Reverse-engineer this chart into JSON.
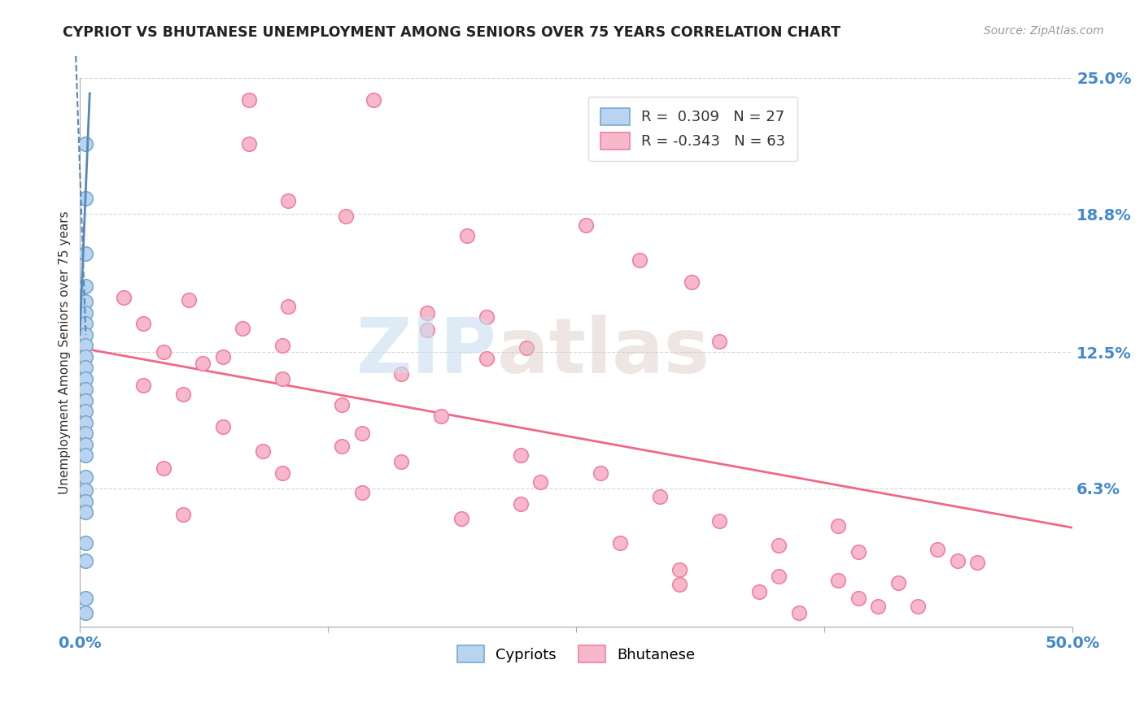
{
  "title": "CYPRIOT VS BHUTANESE UNEMPLOYMENT AMONG SENIORS OVER 75 YEARS CORRELATION CHART",
  "source": "Source: ZipAtlas.com",
  "ylabel": "Unemployment Among Seniors over 75 years",
  "xlim": [
    0.0,
    0.5
  ],
  "ylim": [
    0.0,
    0.25
  ],
  "xtick_positions": [
    0.0,
    0.125,
    0.25,
    0.375,
    0.5
  ],
  "xticklabels": [
    "0.0%",
    "",
    "",
    "",
    "50.0%"
  ],
  "ytick_positions": [
    0.0,
    0.063,
    0.125,
    0.188,
    0.25
  ],
  "ytick_labels": [
    "",
    "6.3%",
    "12.5%",
    "18.8%",
    "25.0%"
  ],
  "legend_cypriot_r": "0.309",
  "legend_cypriot_n": "27",
  "legend_bhutanese_r": "-0.343",
  "legend_bhutanese_n": "63",
  "cypriot_color": "#b8d4f0",
  "bhutanese_color": "#f8b8cc",
  "cypriot_edge_color": "#7aaad0",
  "bhutanese_edge_color": "#f080a0",
  "cypriot_line_color": "#5588bb",
  "bhutanese_line_color": "#f06888",
  "watermark_zip": "ZIP",
  "watermark_atlas": "atlas",
  "cypriot_trendline": [
    [
      0.0,
      0.133
    ],
    [
      0.005,
      0.243
    ]
  ],
  "bhutanese_trendline": [
    [
      0.0,
      0.127
    ],
    [
      0.5,
      0.045
    ]
  ],
  "cypriot_points": [
    [
      0.003,
      0.22
    ],
    [
      0.003,
      0.195
    ],
    [
      0.003,
      0.17
    ],
    [
      0.003,
      0.155
    ],
    [
      0.003,
      0.148
    ],
    [
      0.003,
      0.143
    ],
    [
      0.003,
      0.138
    ],
    [
      0.003,
      0.133
    ],
    [
      0.003,
      0.128
    ],
    [
      0.003,
      0.123
    ],
    [
      0.003,
      0.118
    ],
    [
      0.003,
      0.113
    ],
    [
      0.003,
      0.108
    ],
    [
      0.003,
      0.103
    ],
    [
      0.003,
      0.098
    ],
    [
      0.003,
      0.093
    ],
    [
      0.003,
      0.088
    ],
    [
      0.003,
      0.083
    ],
    [
      0.003,
      0.078
    ],
    [
      0.003,
      0.068
    ],
    [
      0.003,
      0.062
    ],
    [
      0.003,
      0.057
    ],
    [
      0.003,
      0.052
    ],
    [
      0.003,
      0.038
    ],
    [
      0.003,
      0.03
    ],
    [
      0.003,
      0.013
    ],
    [
      0.003,
      0.006
    ]
  ],
  "bhutanese_points": [
    [
      0.085,
      0.24
    ],
    [
      0.148,
      0.24
    ],
    [
      0.085,
      0.22
    ],
    [
      0.105,
      0.194
    ],
    [
      0.134,
      0.187
    ],
    [
      0.255,
      0.183
    ],
    [
      0.195,
      0.178
    ],
    [
      0.282,
      0.167
    ],
    [
      0.308,
      0.157
    ],
    [
      0.022,
      0.15
    ],
    [
      0.055,
      0.149
    ],
    [
      0.105,
      0.146
    ],
    [
      0.175,
      0.143
    ],
    [
      0.205,
      0.141
    ],
    [
      0.032,
      0.138
    ],
    [
      0.082,
      0.136
    ],
    [
      0.175,
      0.135
    ],
    [
      0.322,
      0.13
    ],
    [
      0.102,
      0.128
    ],
    [
      0.225,
      0.127
    ],
    [
      0.042,
      0.125
    ],
    [
      0.072,
      0.123
    ],
    [
      0.205,
      0.122
    ],
    [
      0.062,
      0.12
    ],
    [
      0.162,
      0.115
    ],
    [
      0.102,
      0.113
    ],
    [
      0.032,
      0.11
    ],
    [
      0.052,
      0.106
    ],
    [
      0.132,
      0.101
    ],
    [
      0.182,
      0.096
    ],
    [
      0.072,
      0.091
    ],
    [
      0.142,
      0.088
    ],
    [
      0.132,
      0.082
    ],
    [
      0.092,
      0.08
    ],
    [
      0.222,
      0.078
    ],
    [
      0.162,
      0.075
    ],
    [
      0.042,
      0.072
    ],
    [
      0.102,
      0.07
    ],
    [
      0.262,
      0.07
    ],
    [
      0.232,
      0.066
    ],
    [
      0.142,
      0.061
    ],
    [
      0.292,
      0.059
    ],
    [
      0.222,
      0.056
    ],
    [
      0.052,
      0.051
    ],
    [
      0.192,
      0.049
    ],
    [
      0.322,
      0.048
    ],
    [
      0.382,
      0.046
    ],
    [
      0.272,
      0.038
    ],
    [
      0.352,
      0.037
    ],
    [
      0.432,
      0.035
    ],
    [
      0.392,
      0.034
    ],
    [
      0.442,
      0.03
    ],
    [
      0.302,
      0.026
    ],
    [
      0.352,
      0.023
    ],
    [
      0.382,
      0.021
    ],
    [
      0.412,
      0.02
    ],
    [
      0.302,
      0.019
    ],
    [
      0.342,
      0.016
    ],
    [
      0.392,
      0.013
    ],
    [
      0.402,
      0.009
    ],
    [
      0.452,
      0.029
    ],
    [
      0.422,
      0.009
    ],
    [
      0.362,
      0.006
    ]
  ]
}
